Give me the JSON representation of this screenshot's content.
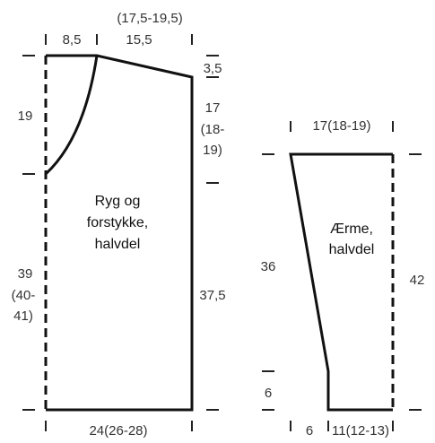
{
  "colors": {
    "outline": "#111111",
    "tick": "#222222",
    "text": "#333333"
  },
  "body_piece": {
    "name_lines": [
      "Ryg og",
      "forstykke,",
      "halvdel"
    ],
    "top_range": "(17,5-19,5)",
    "neck_width": "8,5",
    "shoulder_width": "15,5",
    "shoulder_drop": "3,5",
    "armhole_lines": [
      "17",
      "(18-",
      "19)"
    ],
    "neck_depth": "19",
    "center_length_lines": [
      "39",
      "(40-",
      "41)"
    ],
    "side_length": "37,5",
    "bottom_width": "24(26-28)"
  },
  "sleeve_piece": {
    "name_lines": [
      "Ærme,",
      "halvdel"
    ],
    "top_width": "17(18-19)",
    "slant_length": "36",
    "cuff_height": "6",
    "total_length": "42",
    "bottom_left": "6",
    "bottom_right": "11(12-13)"
  }
}
